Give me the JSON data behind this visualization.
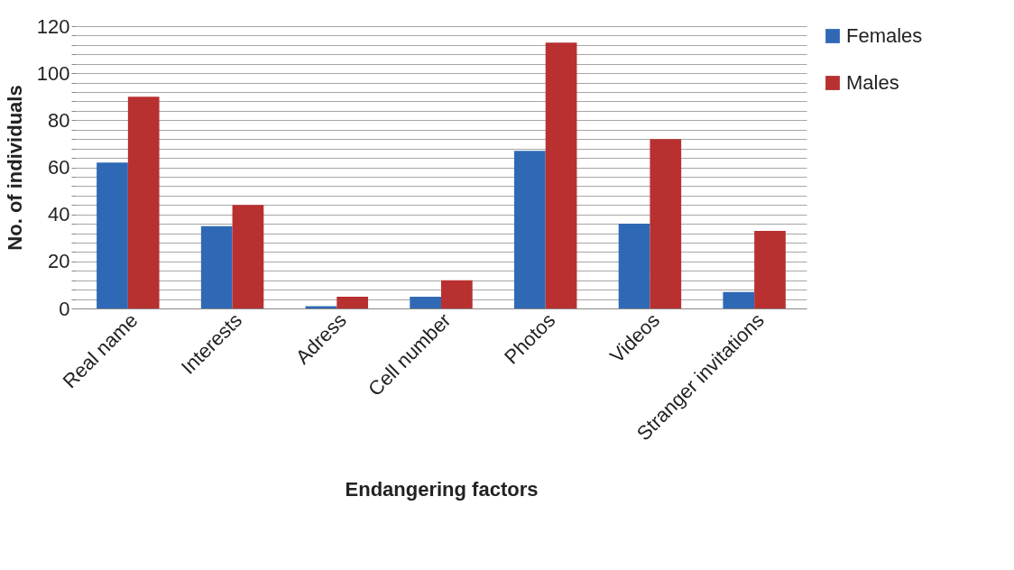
{
  "chart_data": {
    "type": "bar",
    "xlabel": "Endangering factors",
    "ylabel": "No. of individuals",
    "categories": [
      "Real name",
      "Interests",
      "Adress",
      "Cell number",
      "Photos",
      "Videos",
      "Stranger invitations"
    ],
    "series": [
      {
        "name": "Females",
        "color": "#2f69b5",
        "values": [
          62,
          35,
          1,
          5,
          67,
          36,
          7
        ]
      },
      {
        "name": "Males",
        "color": "#b83030",
        "values": [
          90,
          44,
          5,
          12,
          113,
          72,
          33
        ]
      }
    ],
    "ylim": [
      0,
      120
    ],
    "yticks": [
      0,
      {
        "value": 4,
        "label": null
      },
      {
        "value": 8,
        "label": null
      },
      {
        "value": 12,
        "label": null
      },
      {
        "value": 16,
        "label": null
      },
      20,
      {
        "value": 24,
        "label": null
      },
      {
        "value": 28,
        "label": null
      },
      {
        "value": 32,
        "label": null
      },
      {
        "value": 36,
        "label": null
      },
      40,
      {
        "value": 44,
        "label": null
      },
      {
        "value": 48,
        "label": null
      },
      {
        "value": 52,
        "label": null
      },
      {
        "value": 56,
        "label": null
      },
      60,
      {
        "value": 64,
        "label": null
      },
      {
        "value": 68,
        "label": null
      },
      {
        "value": 72,
        "label": null
      },
      {
        "value": 76,
        "label": null
      },
      80,
      {
        "value": 84,
        "label": null
      },
      {
        "value": 88,
        "label": null
      },
      {
        "value": 92,
        "label": null
      },
      {
        "value": 96,
        "label": null
      },
      100,
      {
        "value": 104,
        "label": null
      },
      {
        "value": 108,
        "label": null
      },
      {
        "value": 112,
        "label": null
      },
      {
        "value": 116,
        "label": null
      },
      120
    ],
    "grid": "y",
    "legend": "right"
  }
}
